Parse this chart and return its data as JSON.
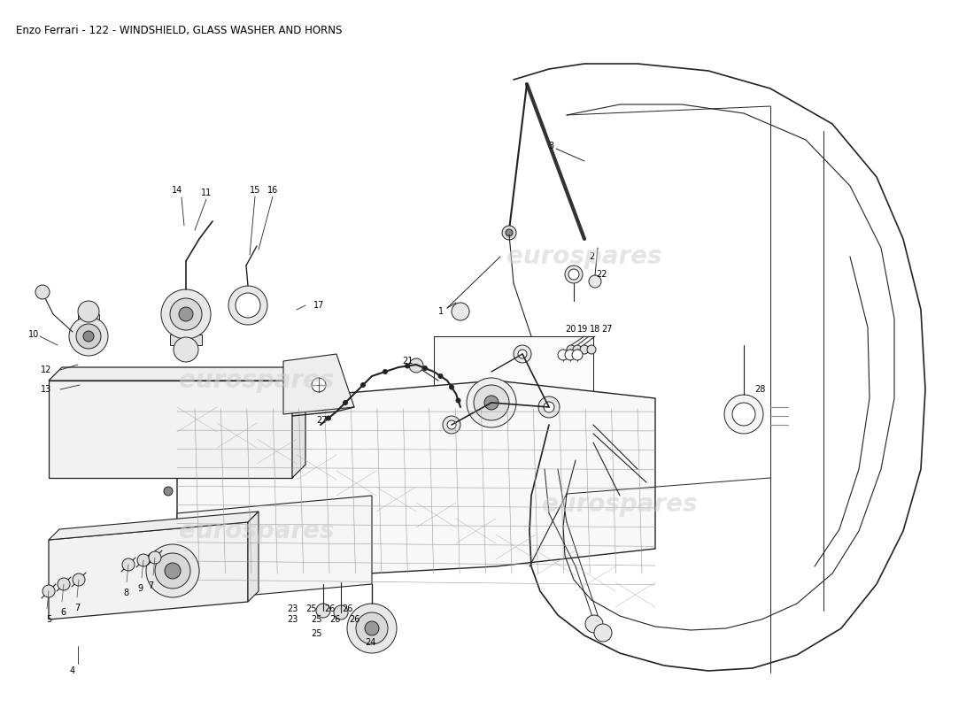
{
  "title": "Enzo Ferrari - 122 - WINDSHIELD, GLASS WASHER AND HORNS",
  "title_fontsize": 8.5,
  "title_color": "#000000",
  "background_color": "#ffffff",
  "watermark_text": "eurospares",
  "watermark_color": "#d0d0d0",
  "fig_width": 11.0,
  "fig_height": 8.0,
  "lc": "#222222",
  "lw": 0.7
}
